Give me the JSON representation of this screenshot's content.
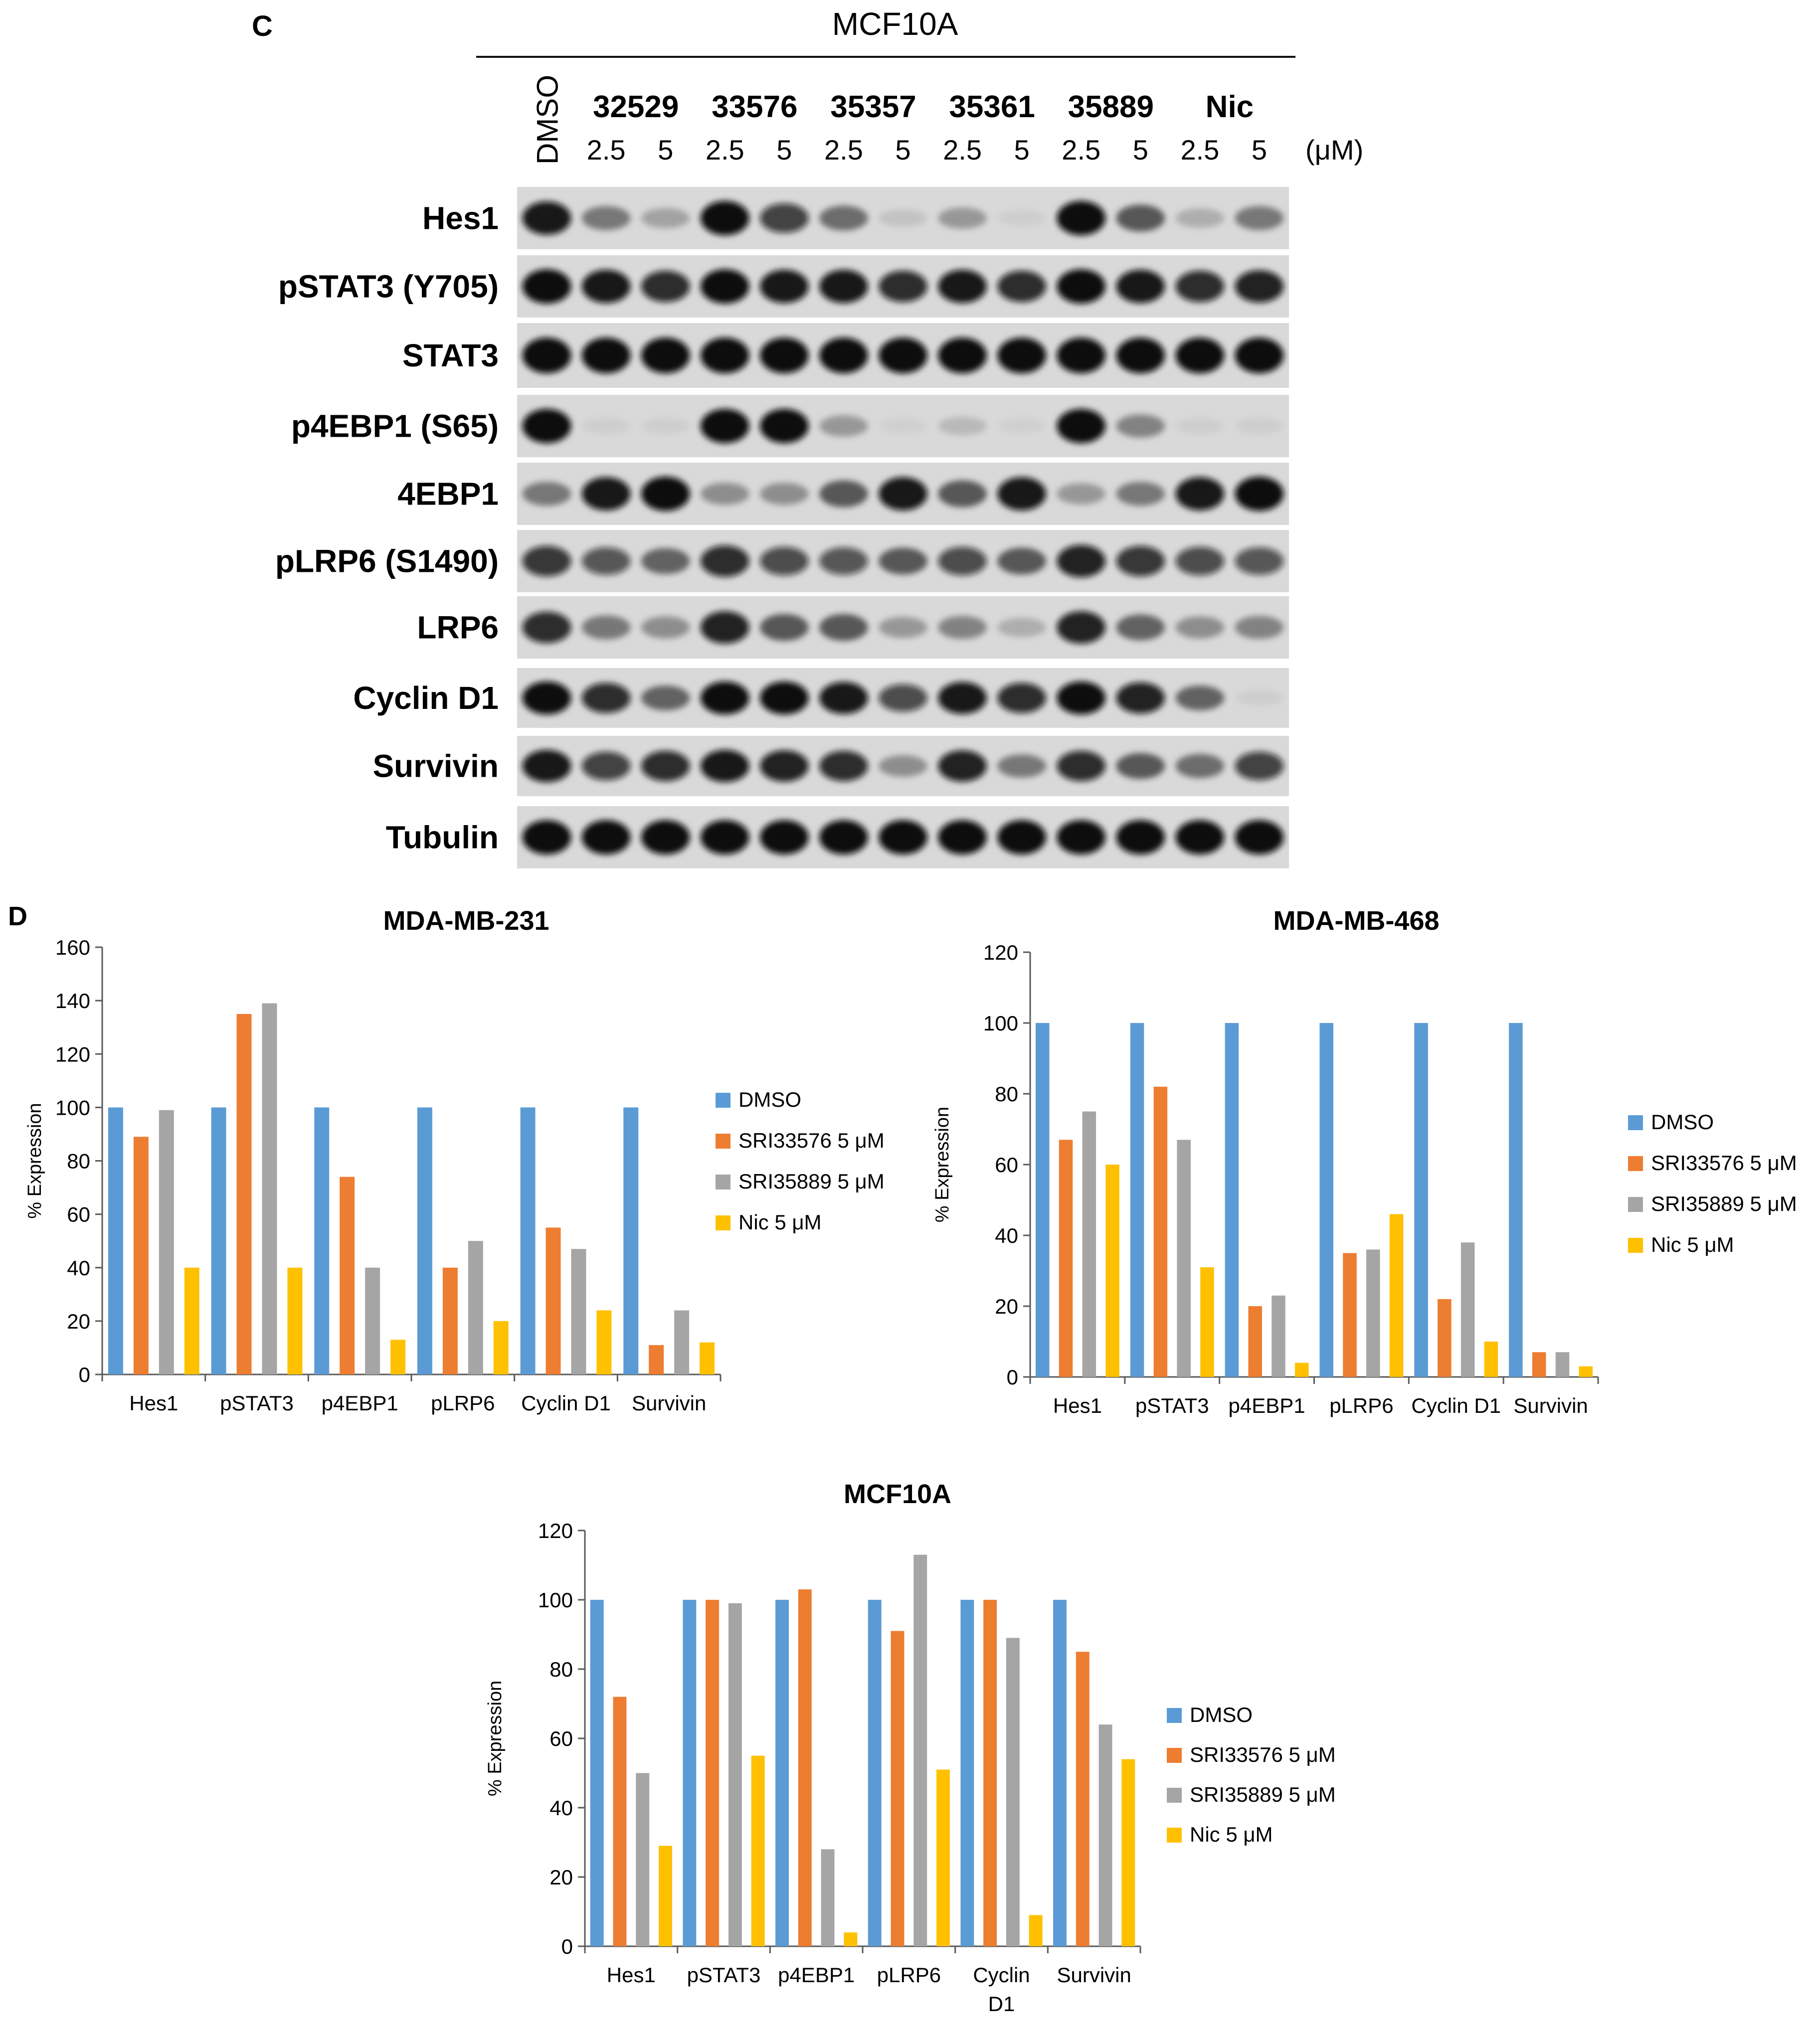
{
  "panel_c": {
    "letter": "C",
    "cell_line": "MCF10A",
    "control_label": "DMSO",
    "compounds": [
      "32529",
      "33576",
      "35357",
      "35361",
      "35889",
      "Nic"
    ],
    "doses": [
      "2.5",
      "5",
      "2.5",
      "5",
      "2.5",
      "5",
      "2.5",
      "5",
      "2.5",
      "5",
      "2.5",
      "5"
    ],
    "unit": "(μM)",
    "rows": [
      {
        "label": "Hes1",
        "intensity": [
          0.95,
          0.45,
          0.25,
          1.0,
          0.75,
          0.5,
          0.1,
          0.3,
          0.05,
          1.0,
          0.6,
          0.2,
          0.45
        ]
      },
      {
        "label": "pSTAT3 (Y705)",
        "intensity": [
          1.0,
          0.95,
          0.85,
          1.0,
          0.95,
          0.95,
          0.85,
          0.95,
          0.85,
          1.0,
          0.95,
          0.85,
          0.9
        ]
      },
      {
        "label": "STAT3",
        "intensity": [
          1.0,
          1.0,
          1.0,
          1.0,
          1.0,
          1.0,
          1.0,
          1.0,
          1.0,
          1.0,
          1.0,
          1.0,
          1.0
        ]
      },
      {
        "label": "p4EBP1 (S65)",
        "intensity": [
          1.0,
          0.05,
          0.05,
          1.0,
          1.0,
          0.3,
          0.03,
          0.15,
          0.03,
          1.0,
          0.4,
          0.05,
          0.05
        ]
      },
      {
        "label": "4EBP1",
        "intensity": [
          0.45,
          0.95,
          1.0,
          0.35,
          0.35,
          0.6,
          0.95,
          0.6,
          0.95,
          0.3,
          0.45,
          0.95,
          1.0
        ]
      },
      {
        "label": "pLRP6 (S1490)",
        "intensity": [
          0.8,
          0.65,
          0.55,
          0.85,
          0.7,
          0.65,
          0.6,
          0.7,
          0.6,
          0.9,
          0.8,
          0.7,
          0.65
        ]
      },
      {
        "label": "LRP6",
        "intensity": [
          0.85,
          0.45,
          0.35,
          0.9,
          0.6,
          0.6,
          0.3,
          0.4,
          0.2,
          0.9,
          0.55,
          0.35,
          0.4
        ]
      },
      {
        "label": "Cyclin D1",
        "intensity": [
          1.0,
          0.85,
          0.55,
          1.0,
          1.0,
          0.95,
          0.7,
          0.95,
          0.85,
          1.0,
          0.9,
          0.55,
          0.05
        ]
      },
      {
        "label": "Survivin",
        "intensity": [
          0.95,
          0.75,
          0.85,
          0.95,
          0.9,
          0.85,
          0.35,
          0.9,
          0.45,
          0.85,
          0.6,
          0.5,
          0.75
        ]
      },
      {
        "label": "Tubulin",
        "intensity": [
          1.0,
          1.0,
          1.0,
          1.0,
          1.0,
          1.0,
          1.0,
          1.0,
          1.0,
          1.0,
          1.0,
          1.0,
          1.0
        ]
      }
    ]
  },
  "panel_d": {
    "letter": "D"
  },
  "legend": [
    "DMSO",
    "SRI33576 5 μM",
    "SRI35889 5 μM",
    "Nic 5 μM"
  ],
  "colors": {
    "DMSO": "#5B9BD5",
    "SRI33576": "#ED7D31",
    "SRI35889": "#A5A5A5",
    "Nic": "#FFC000"
  },
  "chart_data": [
    {
      "type": "bar",
      "title": "MDA-MB-231",
      "ylabel": "% Expression",
      "xlabel": "",
      "ylim": [
        0,
        160
      ],
      "yticks": [
        "0",
        "20",
        "40",
        "60",
        "80",
        "100",
        "120",
        "140",
        "160"
      ],
      "categories": [
        "Hes1",
        "pSTAT3",
        "p4EBP1",
        "pLRP6",
        "Cyclin D1",
        "Survivin"
      ],
      "series": [
        {
          "name": "DMSO",
          "values": [
            100,
            100,
            100,
            100,
            100,
            100
          ]
        },
        {
          "name": "SRI33576 5 μM",
          "values": [
            89,
            135,
            74,
            40,
            55,
            11
          ]
        },
        {
          "name": "SRI35889 5 μM",
          "values": [
            99,
            139,
            40,
            50,
            47,
            24
          ]
        },
        {
          "name": "Nic 5 μM",
          "values": [
            40,
            40,
            13,
            20,
            24,
            12
          ]
        }
      ],
      "legend_position": "right"
    },
    {
      "type": "bar",
      "title": "MDA-MB-468",
      "ylabel": "% Expression",
      "xlabel": "",
      "ylim": [
        0,
        120
      ],
      "yticks": [
        "0",
        "20",
        "40",
        "60",
        "80",
        "100",
        "120"
      ],
      "categories": [
        "Hes1",
        "pSTAT3",
        "p4EBP1",
        "pLRP6",
        "Cyclin D1",
        "Survivin"
      ],
      "series": [
        {
          "name": "DMSO",
          "values": [
            100,
            100,
            100,
            100,
            100,
            100
          ]
        },
        {
          "name": "SRI33576 5 μM",
          "values": [
            67,
            82,
            20,
            35,
            22,
            7
          ]
        },
        {
          "name": "SRI35889 5 μM",
          "values": [
            75,
            67,
            23,
            36,
            38,
            7
          ]
        },
        {
          "name": "Nic 5 μM",
          "values": [
            60,
            31,
            4,
            46,
            10,
            3
          ]
        }
      ],
      "legend_position": "right"
    },
    {
      "type": "bar",
      "title": "MCF10A",
      "ylabel": "% Expression",
      "xlabel": "",
      "ylim": [
        0,
        120
      ],
      "yticks": [
        "0",
        "20",
        "40",
        "60",
        "80",
        "100",
        "120"
      ],
      "categories": [
        "Hes1",
        "pSTAT3",
        "p4EBP1",
        "pLRP6",
        "Cyclin D1",
        "Survivin"
      ],
      "category_lines": [
        [
          "Hes1"
        ],
        [
          "pSTAT3"
        ],
        [
          "p4EBP1"
        ],
        [
          "pLRP6"
        ],
        [
          "Cyclin",
          "D1"
        ],
        [
          "Survivin"
        ]
      ],
      "series": [
        {
          "name": "DMSO",
          "values": [
            100,
            100,
            100,
            100,
            100,
            100
          ]
        },
        {
          "name": "SRI33576 5 μM",
          "values": [
            72,
            100,
            103,
            91,
            100,
            85
          ]
        },
        {
          "name": "SRI35889 5 μM",
          "values": [
            50,
            99,
            28,
            113,
            89,
            64
          ]
        },
        {
          "name": "Nic 5 μM",
          "values": [
            29,
            55,
            4,
            51,
            9,
            54
          ]
        }
      ],
      "legend_position": "right"
    }
  ]
}
